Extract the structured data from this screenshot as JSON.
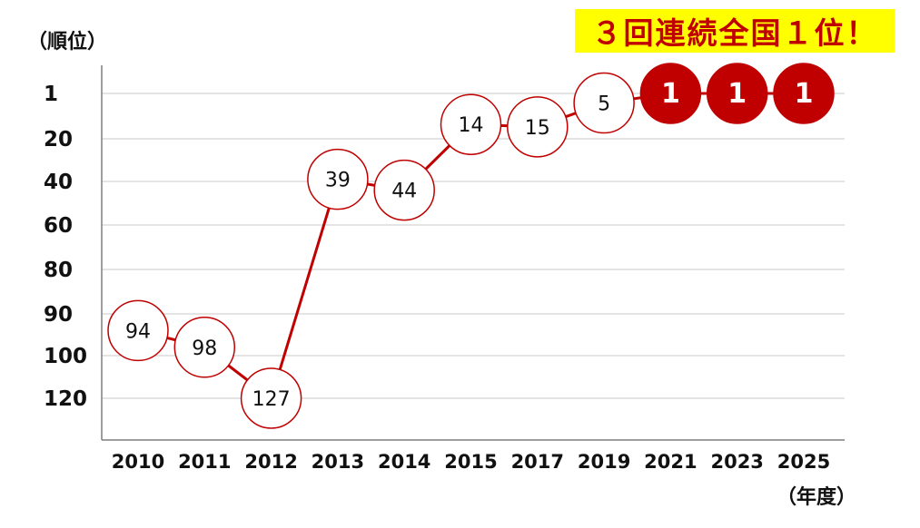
{
  "chart_data": {
    "type": "line",
    "categories": [
      "2010",
      "2011",
      "2012",
      "2013",
      "2014",
      "2015",
      "2017",
      "2019",
      "2021",
      "2023",
      "2025"
    ],
    "series": [
      {
        "values": [
          94,
          98,
          127,
          39,
          44,
          14,
          15,
          5,
          1,
          1,
          1
        ]
      }
    ],
    "xlabel": "（年度）",
    "ylabel": "（順位）",
    "y_ticks": [
      "1",
      "20",
      "40",
      "60",
      "80",
      "90",
      "100",
      "120"
    ],
    "y_reversed": true,
    "grid": true,
    "colors": {
      "line": "#c00000",
      "highlight_fill": "#c00000",
      "marker_fill": "#ffffff",
      "grid": "#c8c8c8",
      "axis": "#7f7f7f"
    },
    "highlight_value": 1
  },
  "banner": {
    "text": "３回連続全国１位！",
    "background": "#ffff00",
    "color": "#c00000"
  }
}
